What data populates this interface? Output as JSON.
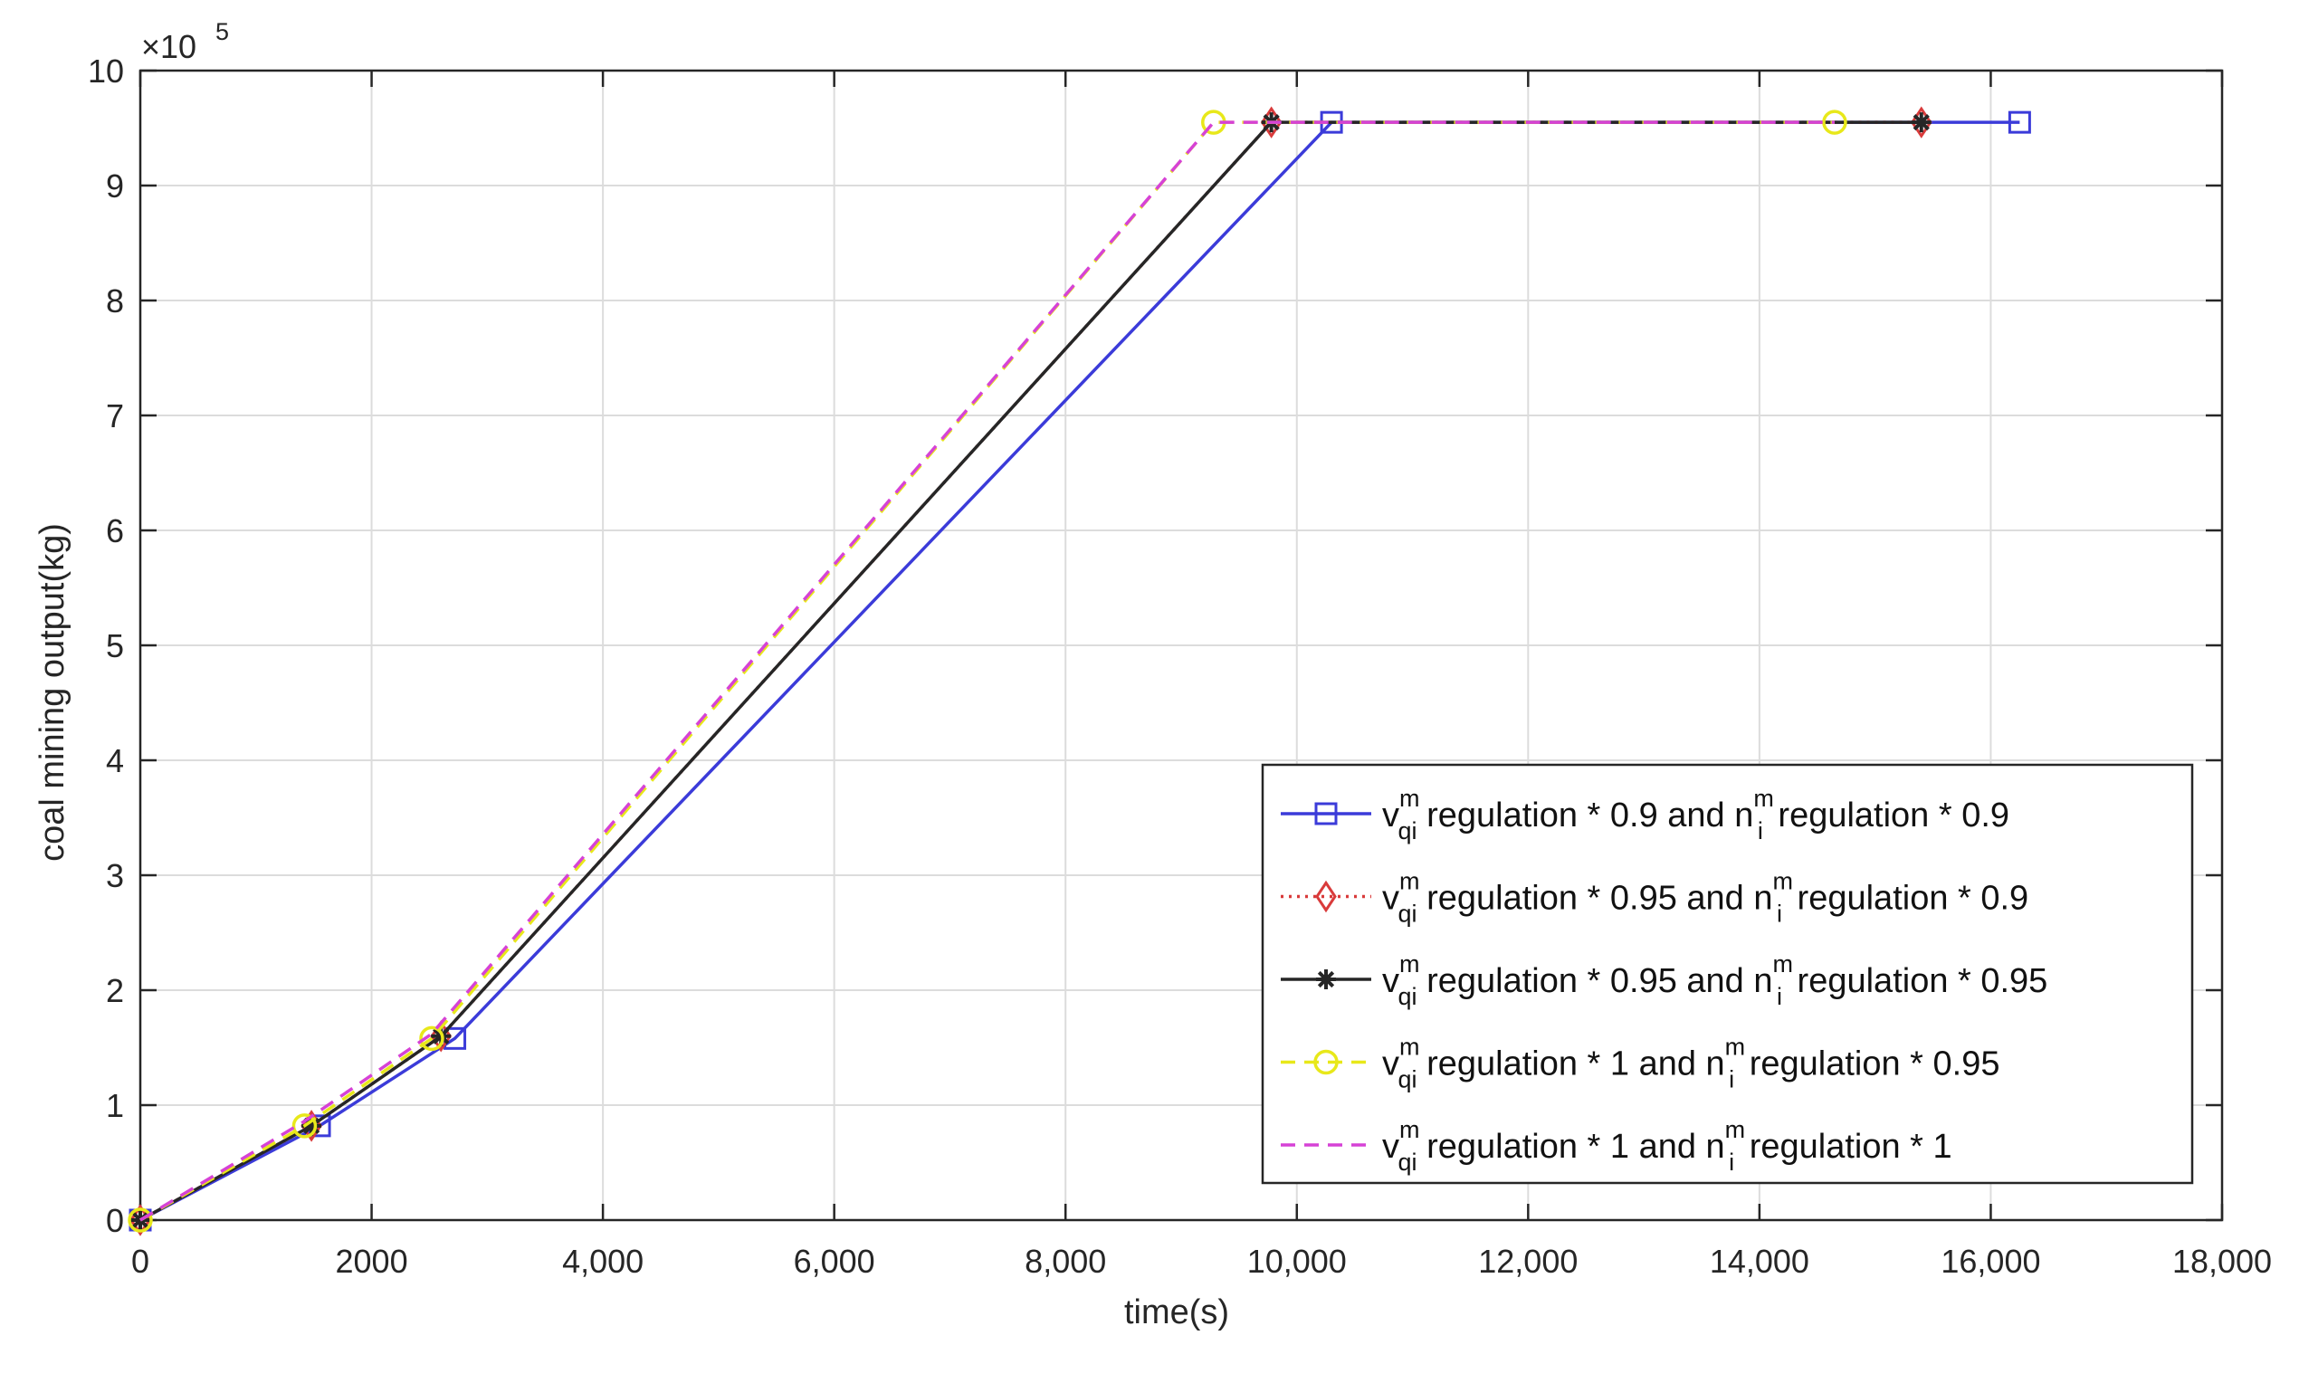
{
  "chart_data": {
    "type": "line",
    "xlabel": "time(s)",
    "ylabel": "coal mining output(kg)",
    "exponent_base": "×10",
    "exponent_power": "5",
    "xlim": [
      0,
      18000
    ],
    "ylim": [
      0,
      10
    ],
    "x_ticks": [
      0,
      2000,
      4000,
      6000,
      8000,
      10000,
      12000,
      14000,
      16000,
      18000
    ],
    "x_tick_labels": [
      "0",
      "2000",
      "4,000",
      "6,000",
      "8,000",
      "10,000",
      "12,000",
      "14,000",
      "16,000",
      "18,000"
    ],
    "y_ticks": [
      0,
      1,
      2,
      3,
      4,
      5,
      6,
      7,
      8,
      9,
      10
    ],
    "y_tick_labels": [
      "0",
      "1",
      "2",
      "3",
      "4",
      "5",
      "6",
      "7",
      "8",
      "9",
      "10"
    ],
    "grid": true,
    "legend_position": "bottom-right",
    "series": [
      {
        "name": "v_qi^m regulation * 0.9 and n_i^m regulation * 0.9",
        "legend_parts": {
          "v": "v",
          "vsup": "m",
          "vsub": "qi",
          "mid": " regulation * 0.9 and ",
          "n": "n",
          "nsup": "m",
          "nsub": "i",
          "tail": " regulation * 0.9"
        },
        "color": "#3b3bd9",
        "dash": "solid",
        "marker": "square",
        "x": [
          0,
          1550,
          2720,
          10300,
          16250
        ],
        "y": [
          0,
          0.82,
          1.58,
          9.55,
          9.55
        ]
      },
      {
        "name": "v_qi^m regulation * 0.95 and n_i^m regulation * 0.9",
        "legend_parts": {
          "v": "v",
          "vsup": "m",
          "vsub": "qi",
          "mid": " regulation * 0.95 and ",
          "n": "n",
          "nsup": "m",
          "nsub": "i",
          "tail": " regulation * 0.9"
        },
        "color": "#d93b3b",
        "dash": "dotted",
        "marker": "diamond",
        "x": [
          0,
          1480,
          2600,
          9780,
          15400
        ],
        "y": [
          0,
          0.82,
          1.6,
          9.55,
          9.55
        ]
      },
      {
        "name": "v_qi^m regulation * 0.95 and n_i^m regulation * 0.95",
        "legend_parts": {
          "v": "v",
          "vsup": "m",
          "vsub": "qi",
          "mid": " regulation * 0.95 and ",
          "n": "n",
          "nsup": "m",
          "nsub": "i",
          "tail": " regulation * 0.95"
        },
        "color": "#262626",
        "dash": "solid",
        "marker": "star",
        "x": [
          0,
          1480,
          2600,
          9780,
          15400
        ],
        "y": [
          0,
          0.82,
          1.6,
          9.55,
          9.55
        ]
      },
      {
        "name": "v_qi^m regulation * 1 and n_i^m regulation * 0.95",
        "legend_parts": {
          "v": "v",
          "vsup": "m",
          "vsub": "qi",
          "mid": " regulation * 1 and ",
          "n": "n",
          "nsup": "m",
          "nsub": "i",
          "tail": " regulation * 0.95"
        },
        "color": "#e8e81a",
        "dash": "dashed",
        "marker": "circle",
        "x": [
          0,
          1420,
          2520,
          9280,
          14650
        ],
        "y": [
          0,
          0.82,
          1.58,
          9.55,
          9.55
        ]
      },
      {
        "name": "v_qi^m regulation * 1 and n_i^m regulation * 1",
        "legend_parts": {
          "v": "v",
          "vsup": "m",
          "vsub": "qi",
          "mid": " regulation * 1 and ",
          "n": "n",
          "nsup": "m",
          "nsub": "i",
          "tail": " regulation * 1"
        },
        "color": "#d642d6",
        "dash": "dashed",
        "marker": "none",
        "x": [
          0,
          1420,
          2520,
          9280,
          14650
        ],
        "y": [
          0,
          0.86,
          1.62,
          9.55,
          9.55
        ]
      }
    ]
  }
}
